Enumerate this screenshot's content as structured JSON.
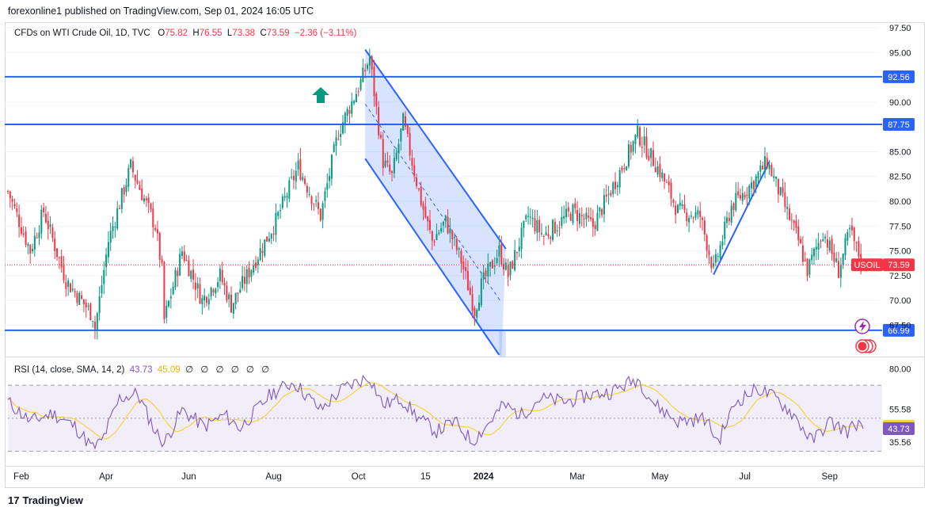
{
  "publisher": "forexonline1 published on TradingView.com, Sep 01, 2024 16:05 UTC",
  "legend": {
    "symbol": "CFDs on WTI Crude Oil, 1D, TVC",
    "o_label": "O",
    "o": "75.82",
    "h_label": "H",
    "h": "76.55",
    "l_label": "L",
    "l": "73.38",
    "c_label": "C",
    "c": "73.59",
    "change": "−2.36 (−3.11%)"
  },
  "rsi_legend": {
    "label": "RSI (14, close, SMA, 14, 2)",
    "rsi": "43.73",
    "sma": "45.09",
    "empties": "∅ ∅ ∅ ∅ ∅ ∅"
  },
  "footer": {
    "brand": "TradingView",
    "logo": "17"
  },
  "colors": {
    "up": "#089981",
    "down": "#f23645",
    "line": "#2962ff",
    "channel_fill": "#2962ff",
    "rsi": "#7e57c2",
    "rsi_sma": "#f5d142",
    "arrow": "#089981"
  },
  "chart_data": {
    "type": "candlestick",
    "title": "CFDs on WTI Crude Oil, 1D, TVC",
    "symbol_tag": "USOIL",
    "last_price": 73.59,
    "price_axis": {
      "ylim": [
        64.5,
        97.9
      ],
      "ticks": [
        "97.50",
        "95.00",
        "90.00",
        "85.00",
        "82.50",
        "80.00",
        "77.50",
        "75.00",
        "72.50",
        "70.00",
        "67.50"
      ]
    },
    "time_axis": {
      "labels": [
        "Feb",
        "Apr",
        "Jun",
        "Aug",
        "Oct",
        "15",
        "2024",
        "Mar",
        "May",
        "Jul",
        "Sep"
      ],
      "label_index": [
        6,
        44,
        81,
        119,
        157,
        187,
        213,
        255,
        292,
        330,
        368
      ]
    },
    "horizontal_levels": [
      {
        "value": 92.56,
        "label": "92.56"
      },
      {
        "value": 87.75,
        "label": "87.75"
      },
      {
        "value": 66.99,
        "label": "66.99"
      }
    ],
    "anchors": [
      [
        0,
        81.0
      ],
      [
        10,
        75.0
      ],
      [
        16,
        79.0
      ],
      [
        26,
        72.0
      ],
      [
        38,
        68.5
      ],
      [
        39,
        67.2
      ],
      [
        45,
        76.0
      ],
      [
        55,
        83.5
      ],
      [
        66,
        77.5
      ],
      [
        69,
        73.0
      ],
      [
        70,
        68.0
      ],
      [
        78,
        75.0
      ],
      [
        87,
        70.0
      ],
      [
        95,
        72.5
      ],
      [
        100,
        69.5
      ],
      [
        120,
        78.0
      ],
      [
        130,
        83.5
      ],
      [
        140,
        78.5
      ],
      [
        148,
        87.0
      ],
      [
        158,
        92.0
      ],
      [
        162,
        94.5
      ],
      [
        168,
        84.0
      ],
      [
        172,
        82.5
      ],
      [
        177,
        88.0
      ],
      [
        185,
        80.0
      ],
      [
        190,
        76.0
      ],
      [
        196,
        78.0
      ],
      [
        203,
        74.0
      ],
      [
        209,
        69.0
      ],
      [
        212,
        71.5
      ],
      [
        220,
        75.0
      ],
      [
        224,
        72.5
      ],
      [
        233,
        78.5
      ],
      [
        240,
        76.5
      ],
      [
        253,
        79.0
      ],
      [
        262,
        77.5
      ],
      [
        272,
        82.0
      ],
      [
        282,
        86.8
      ],
      [
        292,
        83.0
      ],
      [
        300,
        79.0
      ],
      [
        310,
        78.5
      ],
      [
        316,
        73.0
      ],
      [
        324,
        79.5
      ],
      [
        334,
        82.0
      ],
      [
        340,
        84.0
      ],
      [
        347,
        80.0
      ],
      [
        354,
        76.0
      ],
      [
        358,
        73.0
      ],
      [
        365,
        77.0
      ],
      [
        372,
        73.0
      ],
      [
        377,
        77.0
      ],
      [
        380,
        75.2
      ],
      [
        383,
        73.59
      ]
    ],
    "rsi": {
      "ylim": [
        25,
        85
      ],
      "ticks": [
        "80.00",
        "55.58",
        "35.56"
      ],
      "bands": [
        70,
        50,
        30
      ],
      "value": 43.73,
      "sma": 45.09,
      "anchors": [
        [
          0,
          60
        ],
        [
          10,
          48
        ],
        [
          20,
          53
        ],
        [
          30,
          45
        ],
        [
          38,
          32
        ],
        [
          42,
          36
        ],
        [
          50,
          62
        ],
        [
          58,
          65
        ],
        [
          66,
          42
        ],
        [
          70,
          35
        ],
        [
          78,
          55
        ],
        [
          88,
          45
        ],
        [
          97,
          52
        ],
        [
          104,
          44
        ],
        [
          118,
          65
        ],
        [
          128,
          72
        ],
        [
          140,
          55
        ],
        [
          150,
          68
        ],
        [
          158,
          73
        ],
        [
          162,
          75
        ],
        [
          168,
          58
        ],
        [
          176,
          62
        ],
        [
          184,
          50
        ],
        [
          192,
          42
        ],
        [
          200,
          48
        ],
        [
          208,
          36
        ],
        [
          214,
          45
        ],
        [
          222,
          58
        ],
        [
          230,
          52
        ],
        [
          238,
          62
        ],
        [
          250,
          60
        ],
        [
          260,
          64
        ],
        [
          270,
          66
        ],
        [
          282,
          74
        ],
        [
          290,
          58
        ],
        [
          300,
          48
        ],
        [
          312,
          50
        ],
        [
          318,
          36
        ],
        [
          326,
          60
        ],
        [
          336,
          68
        ],
        [
          344,
          62
        ],
        [
          352,
          52
        ],
        [
          360,
          36
        ],
        [
          368,
          48
        ],
        [
          376,
          42
        ],
        [
          380,
          47
        ],
        [
          383,
          43.7
        ]
      ]
    }
  }
}
